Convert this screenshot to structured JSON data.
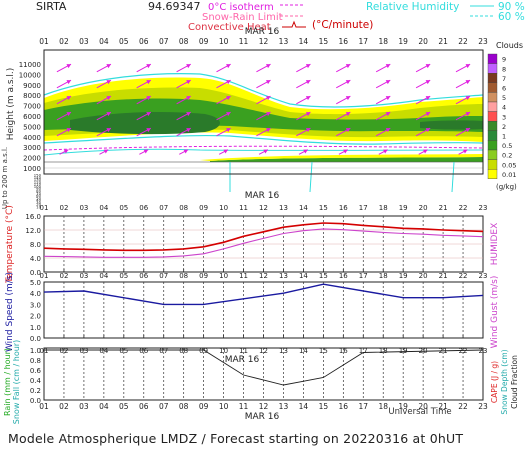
{
  "header": {
    "station": "SIRTA",
    "coords": "94.69347",
    "legend_isotherm": "0°C isotherm",
    "legend_snow": "Snow-Rain Limit",
    "legend_conv": "Convective Heat",
    "legend_conv_unit": "(°C/minute)",
    "legend_rh": "Relative Humidity",
    "rh_90": "90 %",
    "rh_60": "60 %"
  },
  "date_label": "MAR 16",
  "hours": [
    "01",
    "02",
    "03",
    "04",
    "05",
    "06",
    "07",
    "08",
    "09",
    "10",
    "11",
    "12",
    "13",
    "14",
    "15",
    "16",
    "17",
    "18",
    "19",
    "20",
    "21",
    "22",
    "23"
  ],
  "xlabel": "Universal Time",
  "footer": "Modele Atmospherique LMDZ / Forecast starting on 20220316 at 0hUT",
  "colors": {
    "temperature": "#d40000",
    "humidex": "#cc44cc",
    "wind": "#1a1aa0",
    "cloud_fraction": "#222222",
    "wind_arrow": "#e020e0",
    "rh": "#33dddd"
  },
  "chart_data": [
    {
      "panel": "clouds",
      "type": "heatmap",
      "ylabel": "Height (m a.s.l.)",
      "ylabel2": "Up to 200 m a.s.l.",
      "yticks": [
        "11000",
        "10000",
        "9000",
        "8000",
        "7000",
        "6000",
        "5000",
        "4000",
        "3000",
        "2000",
        "1000"
      ],
      "yticks_low": [
        "150",
        "140",
        "130",
        "120",
        "110",
        "100",
        "90",
        "80",
        "70",
        "60",
        "50",
        "40",
        "30",
        "20",
        "10"
      ],
      "legend_title": "Clouds",
      "legend_unit": "(g/kg)",
      "legend_levels": [
        "9",
        "8",
        "7",
        "6",
        "5",
        "4",
        "3",
        "2",
        "1",
        "0.5",
        "0.2",
        "0.05",
        "0.01"
      ],
      "legend_colors": [
        "#9a00cc",
        "#c060ff",
        "#7a3a20",
        "#a05a30",
        "#d09060",
        "#ffa0a0",
        "#ff5050",
        "#3a8a2a",
        "#2a8a3a",
        "#3aa020",
        "#8acc20",
        "#c8dd00",
        "#ffff00"
      ]
    },
    {
      "panel": "temperature",
      "type": "line",
      "ylabel": "Temperature (°C)",
      "ylabel2": "HUMIDEX",
      "yticks": [
        "16.0",
        "12.0",
        "8.0",
        "4.0",
        "0.0"
      ],
      "ylim": [
        0,
        16
      ],
      "series": [
        {
          "values": [
            6.8,
            6.6,
            6.5,
            6.3,
            6.2,
            6.2,
            6.3,
            6.6,
            7.2,
            8.5,
            10.2,
            11.5,
            12.8,
            13.5,
            14.0,
            13.8,
            13.3,
            12.9,
            12.5,
            12.3,
            12.0,
            11.8,
            11.6
          ]
        },
        {
          "values": [
            4.5,
            4.4,
            4.3,
            4.2,
            4.2,
            4.2,
            4.3,
            4.6,
            5.2,
            6.6,
            8.2,
            9.6,
            11.0,
            11.8,
            12.3,
            12.1,
            11.7,
            11.3,
            11.0,
            10.8,
            10.5,
            10.3,
            10.1
          ]
        }
      ]
    },
    {
      "panel": "wind",
      "type": "line",
      "ylabel": "Wind Speed (m/s)",
      "ylabel2": "Wind Gust (m/s)",
      "yticks": [
        "5.0",
        "4.0",
        "3.0",
        "2.0",
        "1.0",
        "0.0"
      ],
      "ylim": [
        0,
        5
      ],
      "x": [
        "01",
        "03",
        "07",
        "09",
        "13",
        "15",
        "19",
        "21",
        "23"
      ],
      "values": [
        4.1,
        4.2,
        3.0,
        3.0,
        4.0,
        4.8,
        3.6,
        3.6,
        3.8
      ]
    },
    {
      "panel": "precip",
      "type": "line",
      "ylabel": "Rain (mm / hour)",
      "ylabel_mid": "Snow Fall (cm / hour)",
      "ylabel2": "CAPE (J / g)",
      "ylabel3": "Snow Depth (cm)",
      "ylabel4": "Cloud Fraction",
      "yticks": [
        "1.0",
        "0.8",
        "0.6",
        "0.4",
        "0.2",
        "0.0"
      ],
      "ylim": [
        0,
        1
      ],
      "series": [
        {
          "x": [
            "01",
            "09",
            "11",
            "13",
            "15",
            "17",
            "23"
          ],
          "values": [
            1.0,
            1.0,
            0.5,
            0.3,
            0.45,
            0.95,
            1.0
          ]
        }
      ]
    }
  ]
}
